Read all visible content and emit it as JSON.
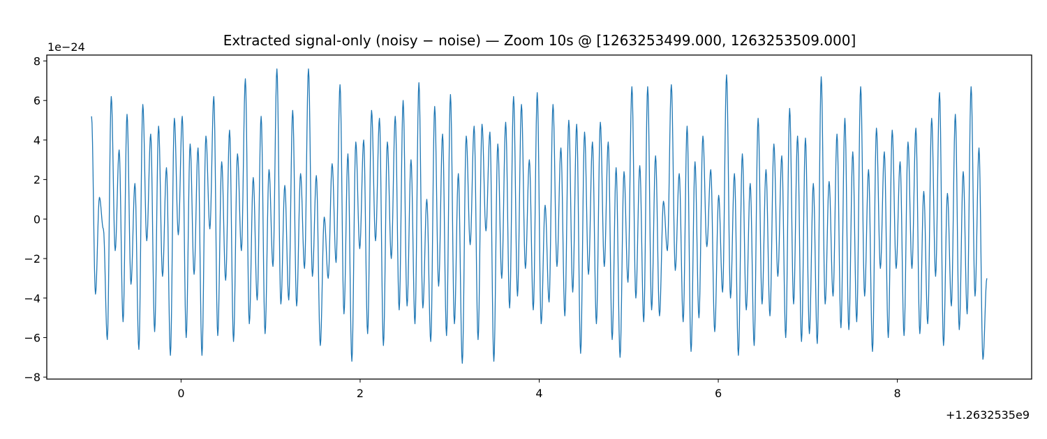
{
  "chart_data": {
    "type": "line",
    "title": "Extracted signal-only (noisy − noise) — Zoom 10s @ [1263253499.000, 1263253509.000]",
    "xlabel": "",
    "ylabel": "",
    "x_offset_label": "+1.2632535e9",
    "y_scale_label": "1e−24",
    "xlim": [
      -1.5,
      9.5
    ],
    "ylim": [
      -8.1,
      8.3
    ],
    "x_ticks": [
      0,
      2,
      4,
      6,
      8
    ],
    "x_tick_labels": [
      "0",
      "2",
      "4",
      "6",
      "8"
    ],
    "y_ticks": [
      -8,
      -6,
      -4,
      -2,
      0,
      2,
      4,
      6,
      8
    ],
    "y_tick_labels": [
      "−8",
      "−6",
      "−4",
      "−2",
      "0",
      "2",
      "4",
      "6",
      "8"
    ],
    "grid": false,
    "line_color": "#1f77b4",
    "series": [
      {
        "x_start": -1.0,
        "x_end": 9.0,
        "extrema": [
          5.2,
          -3.8,
          1.1,
          -0.5,
          -6.1,
          6.2,
          -1.6,
          3.5,
          -5.2,
          5.3,
          -3.3,
          1.8,
          -6.6,
          5.8,
          -1.1,
          4.3,
          -5.7,
          4.7,
          -2.9,
          2.6,
          -6.9,
          5.1,
          -0.8,
          5.2,
          -6.0,
          3.8,
          -2.8,
          3.6,
          -6.9,
          4.2,
          -0.5,
          6.2,
          -5.9,
          2.9,
          -3.1,
          4.5,
          -6.2,
          3.3,
          -1.6,
          7.1,
          -5.3,
          2.1,
          -4.1,
          5.2,
          -5.8,
          2.5,
          -2.4,
          7.6,
          -4.3,
          1.7,
          -4.1,
          5.5,
          -4.4,
          2.3,
          -2.5,
          7.6,
          -2.9,
          2.2,
          -6.4,
          0.1,
          -3.0,
          2.8,
          -2.2,
          6.8,
          -4.8,
          3.3,
          -7.2,
          3.9,
          -1.5,
          4.0,
          -5.8,
          5.5,
          -1.1,
          5.1,
          -6.4,
          3.9,
          -2.0,
          5.2,
          -4.6,
          6.0,
          -4.4,
          3.0,
          -5.3,
          6.9,
          -4.5,
          1.0,
          -6.2,
          5.7,
          -3.4,
          4.3,
          -5.9,
          6.3,
          -5.3,
          2.3,
          -7.3,
          4.2,
          -1.3,
          4.7,
          -6.1,
          4.8,
          -0.6,
          4.4,
          -7.2,
          3.8,
          -3.0,
          4.9,
          -4.5,
          6.2,
          -3.9,
          5.8,
          -2.5,
          3.0,
          -4.6,
          6.4,
          -5.3,
          0.7,
          -4.2,
          5.8,
          -2.4,
          3.6,
          -4.9,
          5.0,
          -3.7,
          4.8,
          -6.8,
          4.4,
          -2.8,
          3.9,
          -5.3,
          4.9,
          -2.4,
          3.9,
          -6.1,
          2.6,
          -7.0,
          2.4,
          -3.2,
          6.7,
          -4.0,
          2.7,
          -5.2,
          6.7,
          -4.6,
          3.2,
          -4.9,
          0.9,
          -1.6,
          6.8,
          -2.6,
          2.3,
          -5.2,
          4.7,
          -6.7,
          2.9,
          -5.0,
          4.2,
          -1.4,
          2.5,
          -5.7,
          1.2,
          -3.7,
          7.3,
          -4.0,
          2.3,
          -6.9,
          3.3,
          -4.6,
          1.8,
          -6.4,
          5.1,
          -4.3,
          2.5,
          -4.9,
          3.8,
          -2.9,
          3.2,
          -6.0,
          5.6,
          -4.3,
          4.2,
          -6.2,
          4.1,
          -5.8,
          1.8,
          -6.3,
          7.2,
          -4.3,
          1.9,
          -3.9,
          4.3,
          -5.5,
          5.1,
          -5.6,
          3.4,
          -5.2,
          6.7,
          -3.9,
          2.5,
          -6.7,
          4.6,
          -2.5,
          3.4,
          -6.0,
          4.5,
          -2.5,
          2.9,
          -5.9,
          3.9,
          -2.5,
          4.6,
          -5.8,
          1.4,
          -5.3,
          5.1,
          -2.9,
          6.4,
          -6.4,
          1.3,
          -4.4,
          5.3,
          -5.6,
          2.4,
          -4.8,
          6.7,
          -3.9,
          3.6,
          -7.1,
          -3.0
        ]
      }
    ]
  }
}
